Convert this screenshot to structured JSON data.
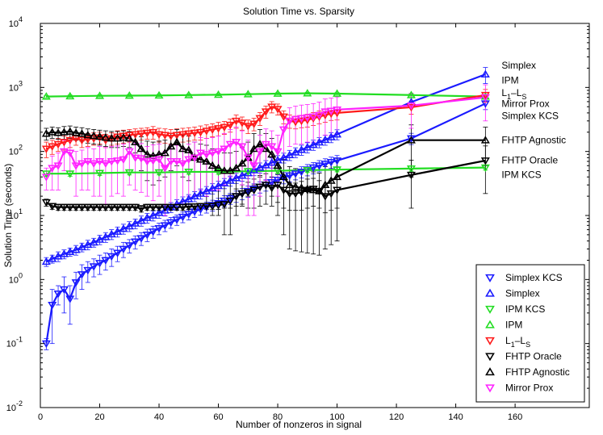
{
  "chart_data": {
    "type": "line",
    "title": "Solution Time vs. Sparsity",
    "xlabel": "Number of nonzeros in signal",
    "ylabel": "Solution Time (seconds)",
    "xlim": [
      0,
      185
    ],
    "ylim": [
      0.01,
      10000
    ],
    "yscale": "log",
    "x_ticks": [
      0,
      20,
      40,
      60,
      80,
      100,
      120,
      140,
      160
    ],
    "y_ticks": [
      {
        "value": 0.01,
        "base": "10",
        "exp": "-2"
      },
      {
        "value": 0.1,
        "base": "10",
        "exp": "-1"
      },
      {
        "value": 1,
        "base": "10",
        "exp": "0"
      },
      {
        "value": 10,
        "base": "10",
        "exp": "1"
      },
      {
        "value": 100,
        "base": "10",
        "exp": "2"
      },
      {
        "value": 1000,
        "base": "10",
        "exp": "3"
      },
      {
        "value": 10000,
        "base": "10",
        "exp": "4"
      }
    ],
    "grid": false,
    "legend_position": "bottom-right",
    "annotations": [
      {
        "text": "Simplex",
        "x": 150,
        "y": 2200
      },
      {
        "text": "IPM",
        "x": 150,
        "y": 1300
      },
      {
        "text": "L1–LS",
        "main": "L",
        "sub1": "1",
        "dash": "–L",
        "sub2": "S",
        "x": 150,
        "y": 820
      },
      {
        "text": "Mirror Prox",
        "x": 150,
        "y": 560
      },
      {
        "text": "Simplex KCS",
        "x": 150,
        "y": 360
      },
      {
        "text": "FHTP Agnostic",
        "x": 150,
        "y": 150
      },
      {
        "text": "FHTP Oracle",
        "x": 150,
        "y": 73
      },
      {
        "text": "IPM KCS",
        "x": 150,
        "y": 43
      }
    ],
    "series": [
      {
        "name": "Simplex KCS",
        "color": "#1a1aff",
        "marker": "triangle-down",
        "x": [
          2,
          4,
          6,
          8,
          10,
          12,
          14,
          16,
          18,
          20,
          22,
          24,
          26,
          28,
          30,
          32,
          34,
          36,
          38,
          40,
          42,
          44,
          46,
          48,
          50,
          52,
          54,
          56,
          58,
          60,
          62,
          64,
          66,
          68,
          70,
          72,
          74,
          76,
          78,
          80,
          82,
          84,
          86,
          88,
          90,
          92,
          94,
          96,
          98,
          100,
          125,
          150
        ],
        "y": [
          0.1,
          0.4,
          0.6,
          0.7,
          0.5,
          0.9,
          1.2,
          1.4,
          1.6,
          1.8,
          2.0,
          2.3,
          2.6,
          3.0,
          3.4,
          3.9,
          4.4,
          5.0,
          5.6,
          6.3,
          7.0,
          7.8,
          8.6,
          9.5,
          10.5,
          11.5,
          12.5,
          13.5,
          14.5,
          15.5,
          17,
          18.5,
          20,
          22,
          24,
          26,
          28,
          30,
          33,
          36,
          39,
          42,
          45,
          48,
          52,
          56,
          60,
          64,
          68,
          72,
          160,
          560
        ],
        "err": [
          0.02,
          0.3,
          0.2,
          0.4,
          0.3,
          0.4,
          0.5,
          0.5,
          0.5,
          0.6,
          0.6,
          0.7,
          0.7,
          0.8,
          0.8,
          0.9,
          1.0,
          1.1,
          1.2,
          1.3,
          1.4,
          1.5,
          1.6,
          1.8,
          2.0,
          2.2,
          2.4,
          2.6,
          2.8,
          3,
          3.3,
          3.6,
          4,
          4.4,
          4.8,
          5.2,
          5.6,
          6,
          6.6,
          7.2,
          7.8,
          8.4,
          9,
          9.6,
          10.4,
          11.2,
          12,
          12.8,
          13.6,
          14.4,
          32,
          110
        ]
      },
      {
        "name": "Simplex",
        "color": "#1a1aff",
        "marker": "triangle-up",
        "x": [
          2,
          4,
          6,
          8,
          10,
          12,
          14,
          16,
          18,
          20,
          22,
          24,
          26,
          28,
          30,
          32,
          34,
          36,
          38,
          40,
          42,
          44,
          46,
          48,
          50,
          52,
          54,
          56,
          58,
          60,
          62,
          64,
          66,
          68,
          70,
          72,
          74,
          76,
          78,
          80,
          82,
          84,
          86,
          88,
          90,
          92,
          94,
          96,
          98,
          100,
          125,
          150
        ],
        "y": [
          1.9,
          2.1,
          2.3,
          2.5,
          2.7,
          2.9,
          3.2,
          3.5,
          3.8,
          4.2,
          4.6,
          5.1,
          5.6,
          6.2,
          6.8,
          7.5,
          8.3,
          9.2,
          10,
          11,
          12,
          13.5,
          15,
          16.5,
          18,
          20,
          22,
          24,
          26.5,
          29,
          32,
          35,
          38.5,
          42,
          46,
          51,
          56,
          61,
          67,
          73,
          80,
          88,
          97,
          106,
          116,
          127,
          139,
          152,
          167,
          185,
          590,
          1600
        ],
        "err": [
          0.3,
          0.3,
          0.4,
          0.4,
          0.4,
          0.5,
          0.5,
          0.6,
          0.6,
          0.7,
          0.8,
          0.9,
          1.0,
          1.1,
          1.2,
          1.3,
          1.5,
          1.6,
          1.8,
          2.0,
          2.2,
          2.4,
          2.7,
          3,
          3.2,
          3.6,
          4,
          4.3,
          4.8,
          5.2,
          5.8,
          6.3,
          6.9,
          7.6,
          8.3,
          9.2,
          10,
          11,
          12,
          13,
          14,
          16,
          17,
          19,
          21,
          23,
          25,
          27,
          30,
          33,
          100,
          450
        ]
      },
      {
        "name": "IPM KCS",
        "color": "#22dd22",
        "marker": "triangle-down",
        "x": [
          2,
          10,
          20,
          30,
          40,
          50,
          60,
          70,
          80,
          90,
          100,
          125,
          150
        ],
        "y": [
          45,
          45,
          46,
          47,
          47,
          48,
          48,
          49,
          50,
          51,
          52,
          54,
          56
        ],
        "err": [
          4,
          4,
          4,
          4,
          4,
          4,
          4,
          4,
          4,
          4,
          4,
          5,
          5
        ]
      },
      {
        "name": "IPM",
        "color": "#22dd22",
        "marker": "triangle-up",
        "x": [
          2,
          10,
          20,
          30,
          40,
          50,
          60,
          70,
          80,
          90,
          100,
          125,
          150
        ],
        "y": [
          720,
          730,
          740,
          745,
          750,
          760,
          770,
          785,
          800,
          810,
          800,
          760,
          720
        ],
        "err": [
          30,
          30,
          30,
          30,
          30,
          30,
          30,
          30,
          30,
          30,
          30,
          30,
          30
        ]
      },
      {
        "name": "L1–LS",
        "main": "L",
        "sub1": "1",
        "dash": "–L",
        "sub2": "S",
        "color": "#ff1a1a",
        "marker": "triangle-down",
        "x": [
          2,
          4,
          6,
          8,
          10,
          12,
          14,
          16,
          18,
          20,
          22,
          24,
          26,
          28,
          30,
          32,
          34,
          36,
          38,
          40,
          42,
          44,
          46,
          48,
          50,
          52,
          54,
          56,
          58,
          60,
          62,
          64,
          66,
          68,
          70,
          72,
          74,
          76,
          78,
          80,
          82,
          84,
          86,
          88,
          90,
          92,
          94,
          96,
          98,
          100,
          125,
          150
        ],
        "y": [
          110,
          120,
          130,
          140,
          150,
          160,
          150,
          155,
          160,
          165,
          150,
          160,
          170,
          175,
          180,
          185,
          190,
          195,
          200,
          185,
          180,
          175,
          180,
          185,
          190,
          195,
          200,
          210,
          220,
          230,
          240,
          260,
          300,
          280,
          250,
          270,
          330,
          420,
          500,
          460,
          350,
          300,
          290,
          300,
          310,
          330,
          350,
          370,
          390,
          400,
          490,
          760
        ],
        "err": [
          30,
          30,
          30,
          35,
          35,
          35,
          35,
          35,
          35,
          35,
          35,
          35,
          40,
          40,
          40,
          40,
          40,
          40,
          45,
          45,
          45,
          45,
          45,
          45,
          45,
          45,
          50,
          50,
          50,
          55,
          55,
          60,
          70,
          65,
          60,
          60,
          75,
          90,
          100,
          90,
          80,
          70,
          65,
          65,
          70,
          75,
          80,
          85,
          85,
          90,
          110,
          170
        ]
      },
      {
        "name": "FHTP Oracle",
        "color": "#000000",
        "marker": "triangle-down",
        "x": [
          2,
          4,
          6,
          8,
          10,
          12,
          14,
          16,
          18,
          20,
          22,
          24,
          26,
          28,
          30,
          32,
          34,
          36,
          38,
          40,
          42,
          44,
          46,
          48,
          50,
          52,
          54,
          56,
          58,
          60,
          62,
          64,
          66,
          68,
          70,
          72,
          74,
          76,
          78,
          80,
          82,
          84,
          86,
          88,
          90,
          92,
          94,
          96,
          98,
          100,
          125,
          150
        ],
        "y": [
          16,
          14,
          13.5,
          13.5,
          13.5,
          13.5,
          13.5,
          13.5,
          13.5,
          13.5,
          13.5,
          13.5,
          13.5,
          13.5,
          13.5,
          13.5,
          12.8,
          13.5,
          13.5,
          13.5,
          13.5,
          13.5,
          13.5,
          13.5,
          13.8,
          13.8,
          14,
          14,
          14,
          14.5,
          15,
          17,
          20,
          22,
          23,
          25,
          28,
          30,
          27,
          30,
          25,
          22,
          22,
          23,
          25,
          26,
          24,
          20,
          22,
          25,
          43,
          72
        ],
        "err": [
          2,
          1.5,
          1.5,
          1.5,
          1.5,
          1.5,
          1.5,
          1.5,
          1.5,
          1.5,
          1.5,
          1.5,
          1.5,
          1.5,
          1.5,
          1.5,
          1.5,
          1.5,
          1.5,
          1.5,
          1.5,
          1.5,
          1.5,
          1.5,
          1.5,
          1.5,
          1.5,
          1.5,
          1.5,
          2,
          2,
          4,
          6,
          8,
          10,
          12,
          14,
          15,
          13,
          14,
          12,
          10,
          10,
          11,
          12,
          12,
          11,
          9,
          10,
          12,
          30,
          50
        ]
      },
      {
        "name": "FHTP Agnostic",
        "color": "#000000",
        "marker": "triangle-up",
        "x": [
          2,
          4,
          6,
          8,
          10,
          12,
          14,
          16,
          18,
          20,
          22,
          24,
          26,
          28,
          30,
          32,
          34,
          36,
          38,
          40,
          42,
          44,
          46,
          48,
          50,
          52,
          54,
          56,
          58,
          60,
          62,
          64,
          66,
          68,
          70,
          72,
          74,
          76,
          78,
          80,
          82,
          84,
          86,
          88,
          90,
          92,
          94,
          96,
          98,
          100,
          125,
          150
        ],
        "y": [
          190,
          200,
          195,
          200,
          205,
          195,
          190,
          180,
          175,
          170,
          165,
          160,
          160,
          165,
          160,
          140,
          110,
          90,
          85,
          90,
          95,
          120,
          140,
          110,
          105,
          80,
          75,
          70,
          60,
          55,
          50,
          50,
          55,
          65,
          80,
          110,
          130,
          110,
          90,
          60,
          40,
          30,
          28,
          27,
          26,
          25,
          24,
          30,
          35,
          40,
          150,
          150
        ],
        "err": [
          40,
          40,
          40,
          45,
          45,
          45,
          45,
          45,
          45,
          45,
          45,
          45,
          45,
          45,
          45,
          45,
          60,
          55,
          55,
          55,
          55,
          70,
          80,
          70,
          70,
          60,
          55,
          55,
          50,
          45,
          45,
          45,
          45,
          50,
          60,
          80,
          90,
          80,
          70,
          50,
          35,
          28,
          26,
          25,
          24,
          23,
          22,
          28,
          32,
          38,
          110,
          90
        ]
      },
      {
        "name": "Mirror Prox",
        "color": "#ff22ff",
        "marker": "triangle-down",
        "x": [
          2,
          4,
          6,
          8,
          10,
          12,
          14,
          16,
          18,
          20,
          22,
          24,
          26,
          28,
          30,
          32,
          34,
          36,
          38,
          40,
          42,
          44,
          46,
          48,
          50,
          52,
          54,
          56,
          58,
          60,
          62,
          64,
          66,
          68,
          70,
          72,
          74,
          76,
          78,
          80,
          82,
          84,
          86,
          88,
          90,
          92,
          94,
          96,
          98,
          100,
          125,
          150
        ],
        "y": [
          40,
          55,
          60,
          100,
          95,
          60,
          65,
          70,
          65,
          70,
          65,
          70,
          72,
          75,
          100,
          80,
          78,
          70,
          72,
          75,
          55,
          70,
          70,
          65,
          75,
          80,
          95,
          90,
          95,
          100,
          110,
          130,
          140,
          120,
          80,
          60,
          100,
          130,
          120,
          100,
          220,
          300,
          320,
          330,
          340,
          350,
          370,
          420,
          430,
          450,
          520,
          700
        ],
        "err": [
          15,
          30,
          35,
          50,
          50,
          40,
          40,
          45,
          45,
          50,
          50,
          50,
          50,
          55,
          70,
          55,
          55,
          50,
          55,
          55,
          45,
          55,
          55,
          50,
          55,
          60,
          70,
          70,
          70,
          75,
          80,
          90,
          100,
          90,
          70,
          50,
          80,
          95,
          90,
          80,
          140,
          180,
          190,
          200,
          200,
          210,
          220,
          240,
          250,
          260,
          290,
          400
        ]
      }
    ]
  }
}
